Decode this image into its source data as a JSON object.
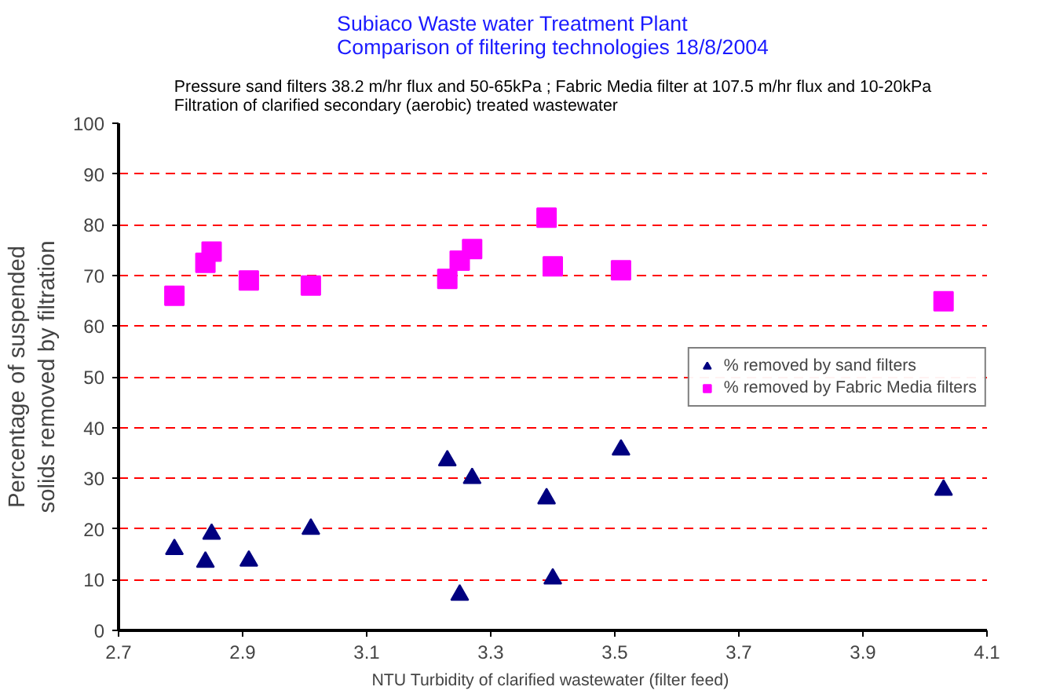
{
  "chart_data": {
    "type": "scatter",
    "title": "Subiaco Waste water Treatment Plant\nComparison of filtering technologies 18/8/2004",
    "subtitle": "Pressure sand filters 38.2 m/hr flux and 50-65kPa ; Fabric Media filter at 107.5 m/hr flux and 10-20kPa\nFiltration of clarified secondary (aerobic) treated wastewater",
    "xlabel": "NTU Turbidity of clarified wastewater  (filter feed)",
    "ylabel": "Percentage of suspended\nsolids removed by filtration",
    "xlim": [
      2.7,
      4.1
    ],
    "xticks": [
      2.7,
      2.9,
      3.1,
      3.3,
      3.5,
      3.7,
      3.9,
      4.1
    ],
    "ylim": [
      0,
      100
    ],
    "yticks": [
      0,
      10,
      20,
      30,
      40,
      50,
      60,
      70,
      80,
      90,
      100
    ],
    "grid": "y",
    "legend": "right",
    "series": [
      {
        "name": "% removed by sand filters",
        "color": "#000080",
        "marker": "triangle",
        "x": [
          2.79,
          2.84,
          2.85,
          2.91,
          3.01,
          3.23,
          3.25,
          3.27,
          3.39,
          3.4,
          3.51,
          4.03
        ],
        "values": [
          16,
          13.5,
          19,
          13.7,
          20,
          33.5,
          7,
          30,
          26,
          10.2,
          35.6,
          27.7
        ]
      },
      {
        "name": "% removed by Fabric Media filters",
        "color": "#ff00ff",
        "marker": "square",
        "x": [
          2.79,
          2.84,
          2.85,
          2.91,
          3.01,
          3.23,
          3.25,
          3.27,
          3.39,
          3.4,
          3.51,
          4.03
        ],
        "values": [
          66,
          72.5,
          74.7,
          69,
          68,
          69.3,
          72.9,
          75.2,
          81.4,
          71.8,
          71,
          64.9
        ]
      }
    ]
  }
}
